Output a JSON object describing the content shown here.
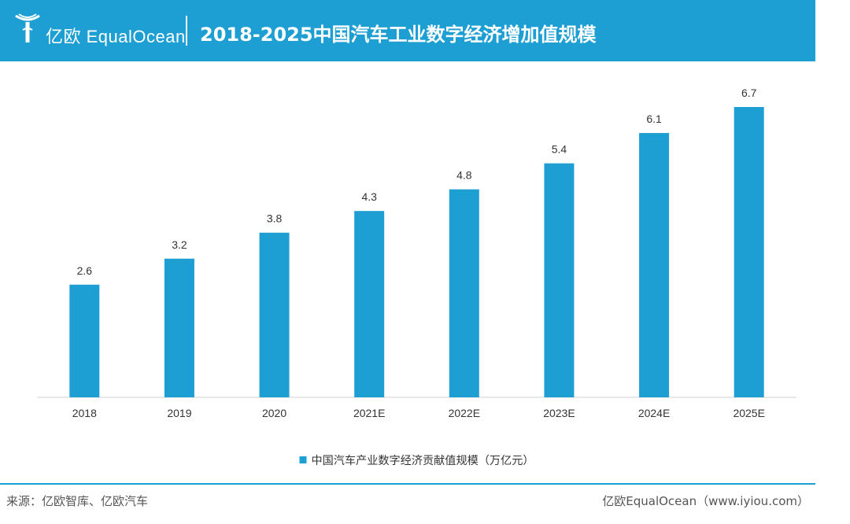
{
  "header": {
    "logo_text": "亿欧 EqualOcean",
    "title": "2018-2025中国汽车工业数字经济增加值规模"
  },
  "chart_data": {
    "type": "bar",
    "categories": [
      "2018",
      "2019",
      "2020",
      "2021E",
      "2022E",
      "2023E",
      "2024E",
      "2025E"
    ],
    "series": [
      {
        "name": "中国汽车产业数字经济贡献值规模（万亿元）",
        "values": [
          2.6,
          3.2,
          3.8,
          4.3,
          4.8,
          5.4,
          6.1,
          6.7
        ]
      }
    ],
    "ylim": [
      0,
      6.7
    ],
    "grid": false,
    "legend": "bottom-center",
    "color": "#1e9fd3"
  },
  "footer": {
    "source": "来源：亿欧智库、亿欧汽车",
    "credit": "亿欧EqualOcean（www.iyiou.com）"
  }
}
